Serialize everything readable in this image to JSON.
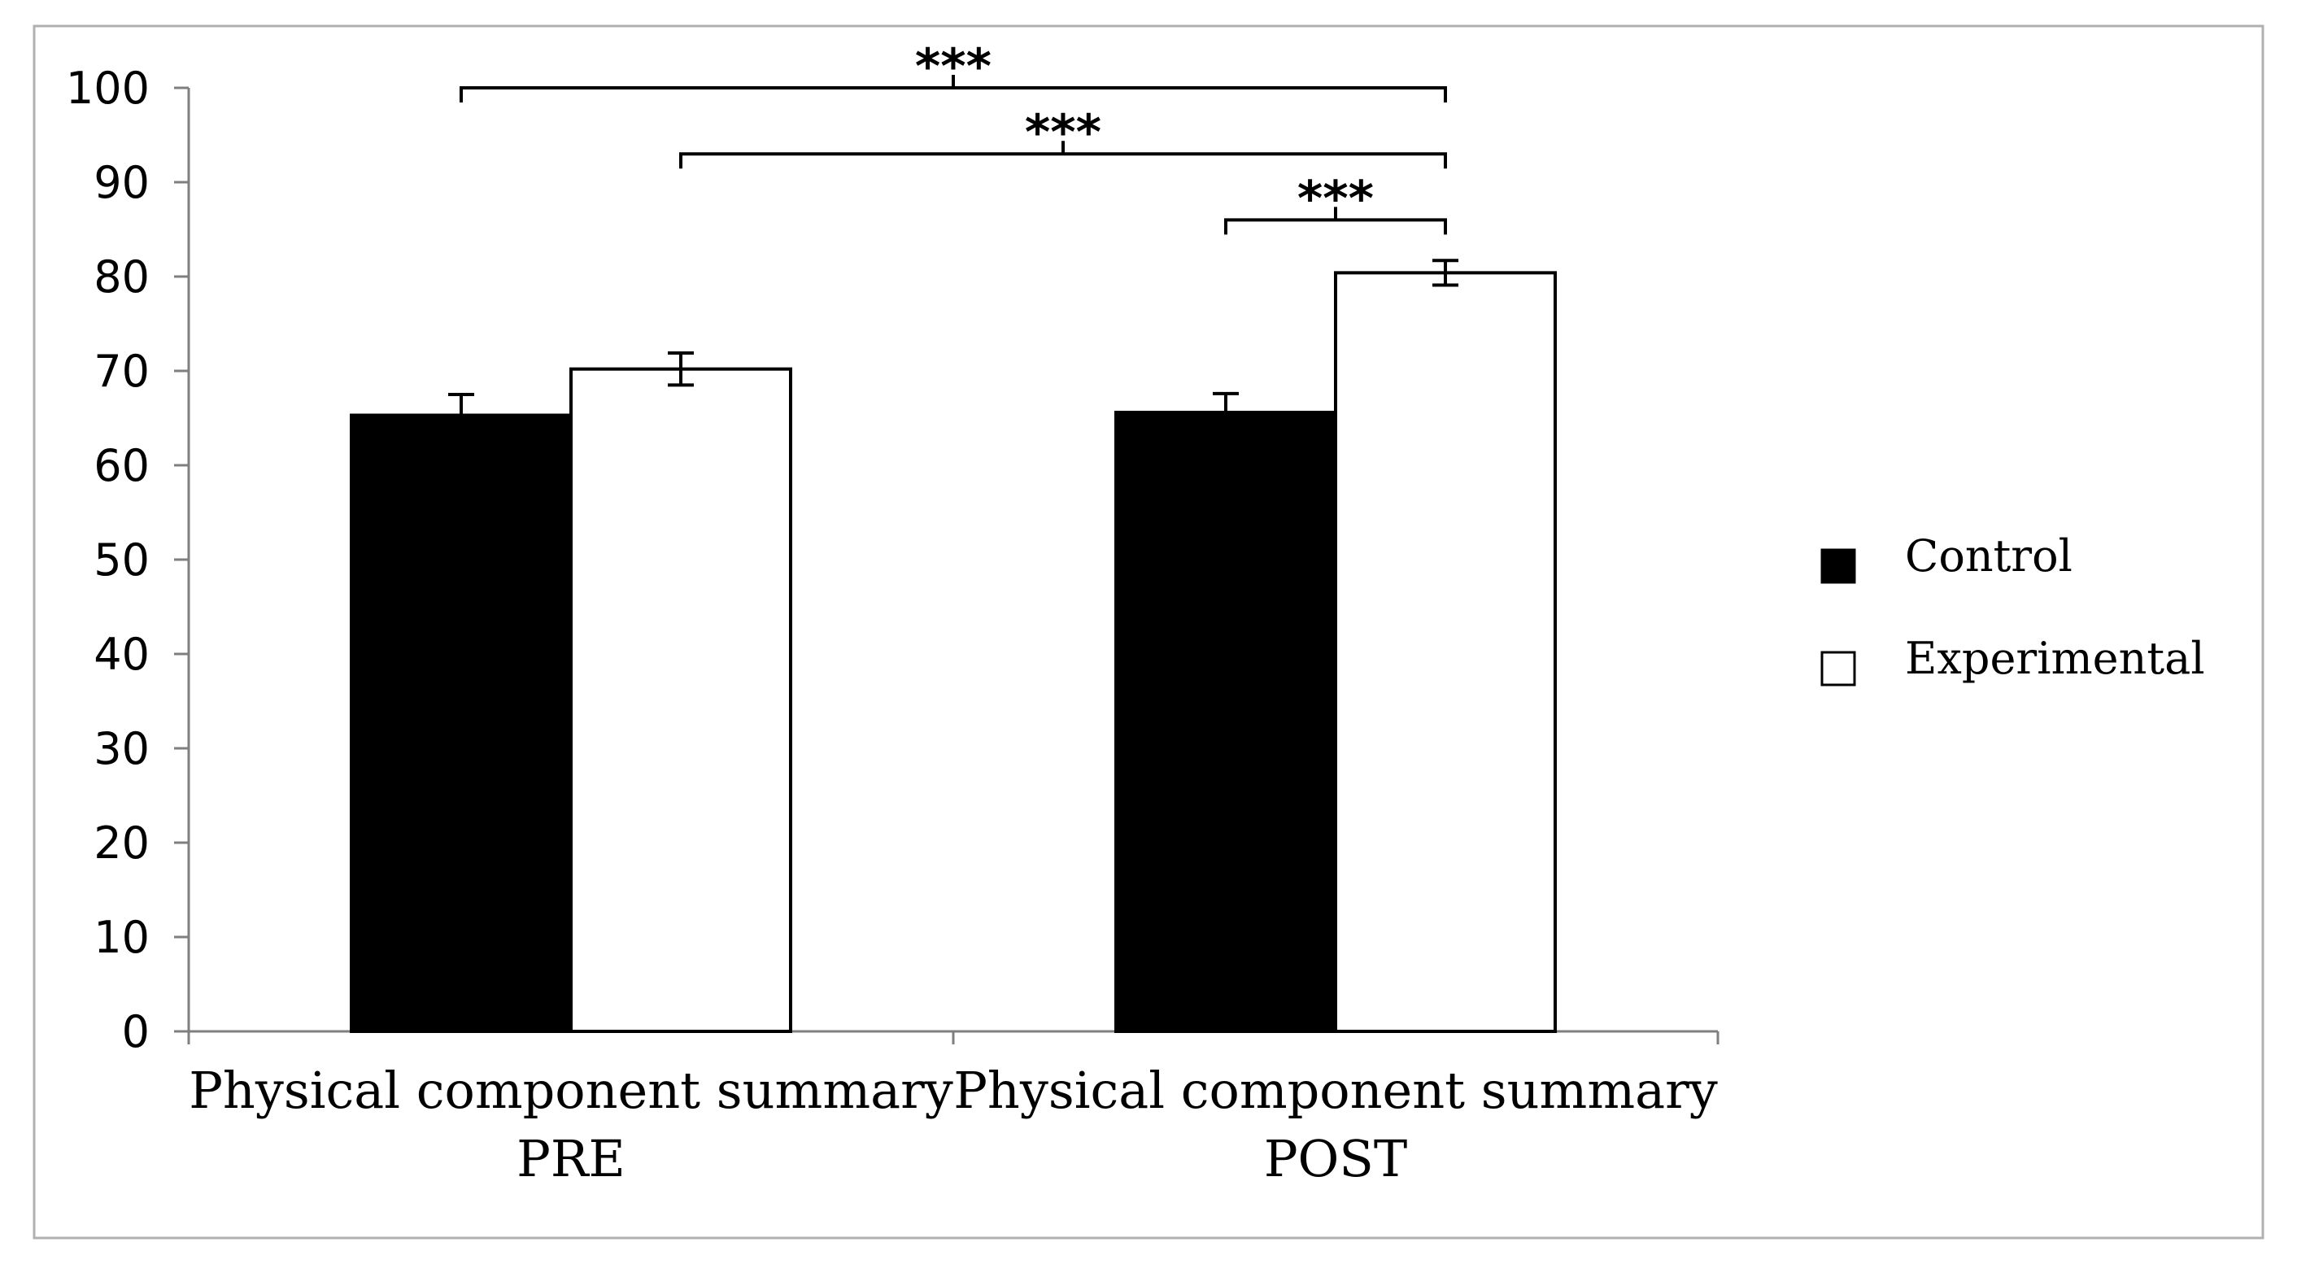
{
  "chart_data": {
    "type": "bar",
    "title": "",
    "xlabel": "",
    "ylabel": "",
    "ylim": [
      0,
      100
    ],
    "yticks": [
      0,
      10,
      20,
      30,
      40,
      50,
      60,
      70,
      80,
      90,
      100
    ],
    "yticks_labels": [
      "0",
      "10",
      "20",
      "30",
      "40",
      "50",
      "60",
      "70",
      "80",
      "90",
      "100"
    ],
    "grid": false,
    "legend_position": "right",
    "categories": [
      {
        "line1": "Physical component  summary",
        "line2": "PRE"
      },
      {
        "line1": "Physical component  summary",
        "line2": "POST"
      }
    ],
    "series": [
      {
        "name": "Control",
        "fill": "#000000",
        "values": [
          65.3,
          65.6
        ],
        "errors": [
          2.2,
          2.0
        ]
      },
      {
        "name": "Experimental",
        "fill": "#ffffff",
        "values": [
          70.2,
          80.4
        ],
        "errors": [
          1.7,
          1.3
        ]
      }
    ],
    "significance": [
      {
        "label": "***",
        "from": {
          "series": 0,
          "category": 0
        },
        "to": {
          "series": 1,
          "category": 1
        },
        "level": 100
      },
      {
        "label": "***",
        "from": {
          "series": 1,
          "category": 0
        },
        "to": {
          "series": 1,
          "category": 1
        },
        "level": 93
      },
      {
        "label": "***",
        "from": {
          "series": 0,
          "category": 1
        },
        "to": {
          "series": 1,
          "category": 1
        },
        "level": 86
      }
    ]
  }
}
